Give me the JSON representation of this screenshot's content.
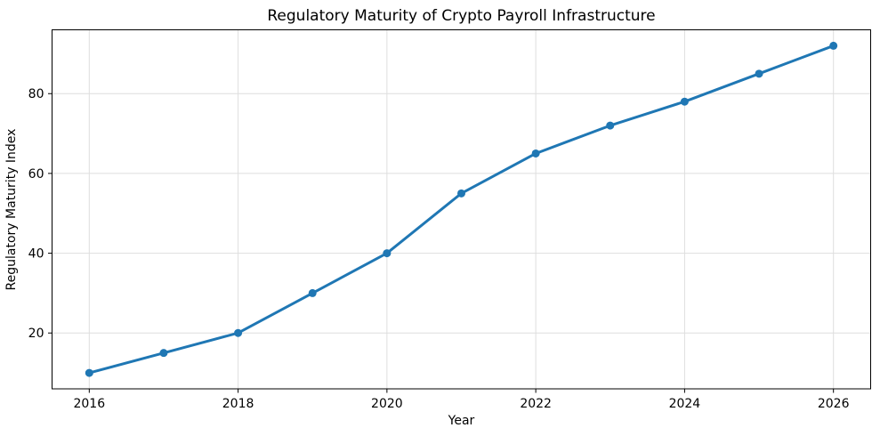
{
  "chart_data": {
    "type": "line",
    "title": "Regulatory Maturity of Crypto Payroll Infrastructure",
    "xlabel": "Year",
    "ylabel": "Regulatory Maturity Index",
    "x": [
      2016,
      2017,
      2018,
      2019,
      2020,
      2021,
      2022,
      2023,
      2024,
      2025,
      2026
    ],
    "y": [
      10,
      15,
      20,
      30,
      40,
      55,
      65,
      72,
      78,
      85,
      92
    ],
    "series": [
      {
        "name": "Regulatory Maturity Index",
        "values": [
          10,
          15,
          20,
          30,
          40,
          55,
          65,
          72,
          78,
          85,
          92
        ]
      }
    ],
    "xlim": [
      2015.5,
      2026.5
    ],
    "ylim": [
      6,
      96
    ],
    "x_ticks": [
      2016,
      2018,
      2020,
      2022,
      2024,
      2026
    ],
    "y_ticks": [
      20,
      40,
      60,
      80
    ],
    "grid": true,
    "legend_position": "none",
    "line_color": "#1f77b4",
    "marker": "circle",
    "grid_color": "#dedede",
    "spine_color": "#000000",
    "tick_color": "#000000",
    "background_color": "#ffffff"
  }
}
